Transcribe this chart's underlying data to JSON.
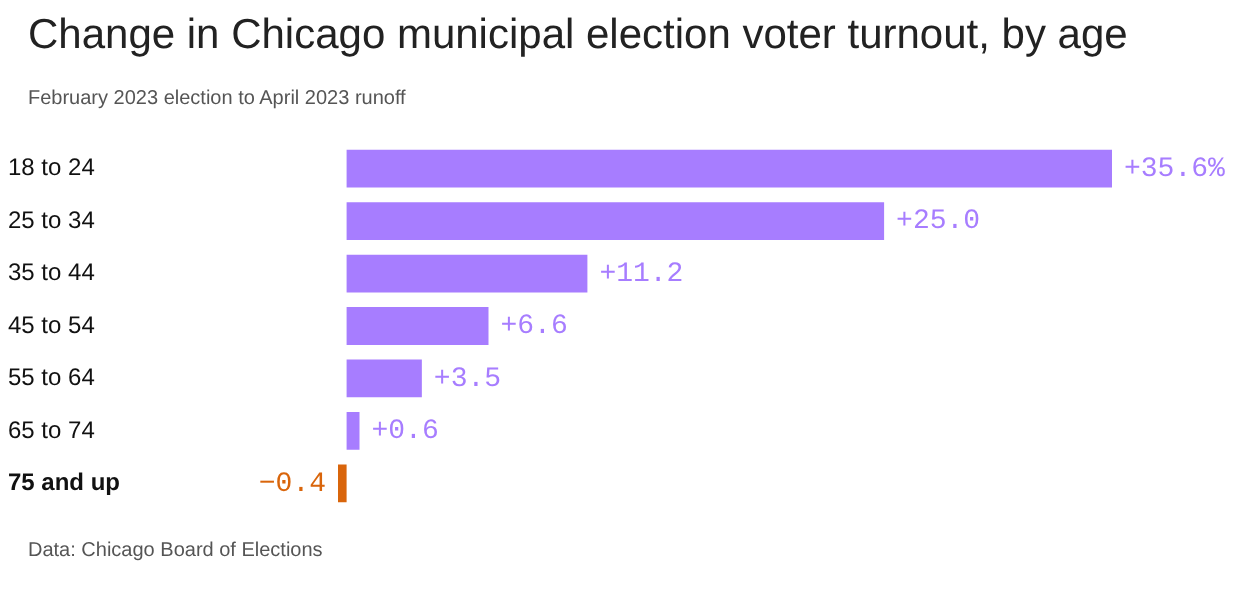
{
  "chart_data": {
    "type": "bar",
    "orientation": "horizontal",
    "title": "Change in Chicago municipal election voter turnout, by age",
    "subtitle": "February 2023 election to April 2023 runoff",
    "categories": [
      "18 to 24",
      "25 to 34",
      "35 to 44",
      "45 to 54",
      "55 to 64",
      "65 to 74",
      "75 and up"
    ],
    "values": [
      35.6,
      25.0,
      11.2,
      6.6,
      3.5,
      0.6,
      -0.4
    ],
    "colors": [
      "#a77dff",
      "#a77dff",
      "#a77dff",
      "#a77dff",
      "#a77dff",
      "#a77dff",
      "#d9650b"
    ],
    "value_labels": [
      "+35.6%",
      "+25.0",
      "+11.2",
      "+6.6",
      "+3.5",
      "+0.6",
      "−0.4"
    ],
    "legend": false,
    "annotations": [
      "Data: Chicago Board of Elections"
    ]
  }
}
